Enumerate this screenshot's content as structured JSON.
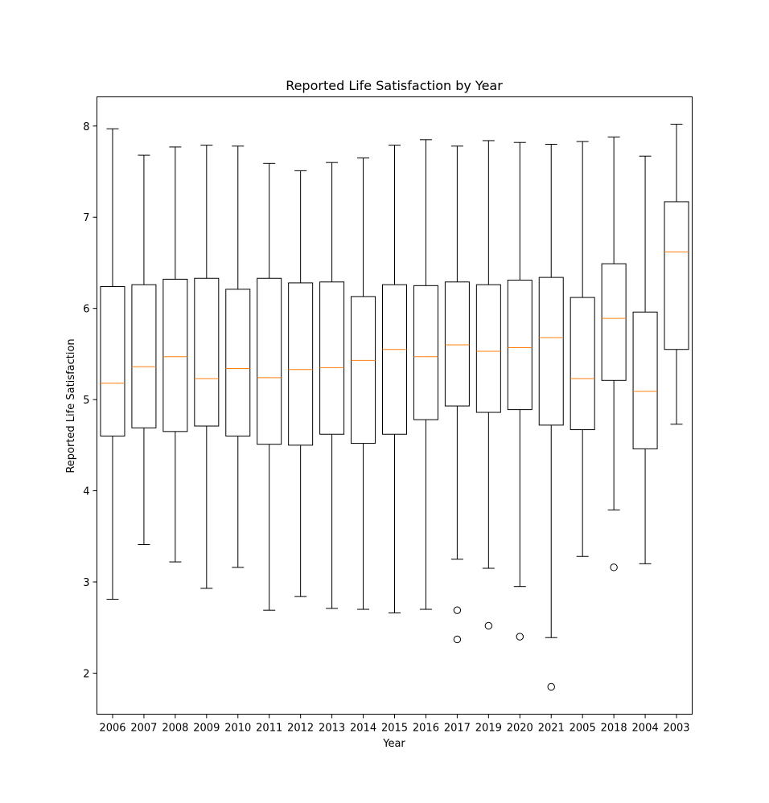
{
  "chart_data": {
    "type": "box",
    "title": "Reported Life Satisfaction by Year",
    "xlabel": "Year",
    "ylabel": "Reported Life Satisfaction",
    "ylim": [
      1.55,
      8.32
    ],
    "yticks": [
      2,
      3,
      4,
      5,
      6,
      7,
      8
    ],
    "grid": false,
    "colors": {
      "box": "#000000",
      "median": "#ff7f0e",
      "background": "#ffffff"
    },
    "categories": [
      "2006",
      "2007",
      "2008",
      "2009",
      "2010",
      "2011",
      "2012",
      "2013",
      "2014",
      "2015",
      "2016",
      "2017",
      "2019",
      "2020",
      "2021",
      "2005",
      "2018",
      "2004",
      "2003"
    ],
    "boxes": [
      {
        "label": "2006",
        "whisker_low": 2.81,
        "q1": 4.6,
        "median": 5.18,
        "q3": 6.24,
        "whisker_high": 7.97,
        "outliers": []
      },
      {
        "label": "2007",
        "whisker_low": 3.41,
        "q1": 4.69,
        "median": 5.36,
        "q3": 6.26,
        "whisker_high": 7.68,
        "outliers": []
      },
      {
        "label": "2008",
        "whisker_low": 3.22,
        "q1": 4.65,
        "median": 5.47,
        "q3": 6.32,
        "whisker_high": 7.77,
        "outliers": []
      },
      {
        "label": "2009",
        "whisker_low": 2.93,
        "q1": 4.71,
        "median": 5.23,
        "q3": 6.33,
        "whisker_high": 7.79,
        "outliers": []
      },
      {
        "label": "2010",
        "whisker_low": 3.16,
        "q1": 4.6,
        "median": 5.34,
        "q3": 6.21,
        "whisker_high": 7.78,
        "outliers": []
      },
      {
        "label": "2011",
        "whisker_low": 2.69,
        "q1": 4.51,
        "median": 5.24,
        "q3": 6.33,
        "whisker_high": 7.59,
        "outliers": []
      },
      {
        "label": "2012",
        "whisker_low": 2.84,
        "q1": 4.5,
        "median": 5.33,
        "q3": 6.28,
        "whisker_high": 7.51,
        "outliers": []
      },
      {
        "label": "2013",
        "whisker_low": 2.71,
        "q1": 4.62,
        "median": 5.35,
        "q3": 6.29,
        "whisker_high": 7.6,
        "outliers": []
      },
      {
        "label": "2014",
        "whisker_low": 2.7,
        "q1": 4.52,
        "median": 5.43,
        "q3": 6.13,
        "whisker_high": 7.65,
        "outliers": []
      },
      {
        "label": "2015",
        "whisker_low": 2.66,
        "q1": 4.62,
        "median": 5.55,
        "q3": 6.26,
        "whisker_high": 7.79,
        "outliers": []
      },
      {
        "label": "2016",
        "whisker_low": 2.7,
        "q1": 4.78,
        "median": 5.47,
        "q3": 6.25,
        "whisker_high": 7.85,
        "outliers": []
      },
      {
        "label": "2017",
        "whisker_low": 3.25,
        "q1": 4.93,
        "median": 5.6,
        "q3": 6.29,
        "whisker_high": 7.78,
        "outliers": [
          2.69,
          2.37
        ]
      },
      {
        "label": "2019",
        "whisker_low": 3.15,
        "q1": 4.86,
        "median": 5.53,
        "q3": 6.26,
        "whisker_high": 7.84,
        "outliers": [
          2.52
        ]
      },
      {
        "label": "2020",
        "whisker_low": 2.95,
        "q1": 4.89,
        "median": 5.57,
        "q3": 6.31,
        "whisker_high": 7.82,
        "outliers": [
          2.4
        ]
      },
      {
        "label": "2021",
        "whisker_low": 2.39,
        "q1": 4.72,
        "median": 5.68,
        "q3": 6.34,
        "whisker_high": 7.8,
        "outliers": [
          1.85
        ]
      },
      {
        "label": "2005",
        "whisker_low": 3.28,
        "q1": 4.67,
        "median": 5.23,
        "q3": 6.12,
        "whisker_high": 7.83,
        "outliers": []
      },
      {
        "label": "2018",
        "whisker_low": 3.79,
        "q1": 5.21,
        "median": 5.89,
        "q3": 6.49,
        "whisker_high": 7.88,
        "outliers": [
          3.16
        ]
      },
      {
        "label": "2004",
        "whisker_low": 3.2,
        "q1": 4.46,
        "median": 5.09,
        "q3": 5.96,
        "whisker_high": 7.67,
        "outliers": []
      },
      {
        "label": "2003",
        "whisker_low": 4.73,
        "q1": 5.55,
        "median": 6.62,
        "q3": 7.17,
        "whisker_high": 8.02,
        "outliers": []
      }
    ]
  }
}
